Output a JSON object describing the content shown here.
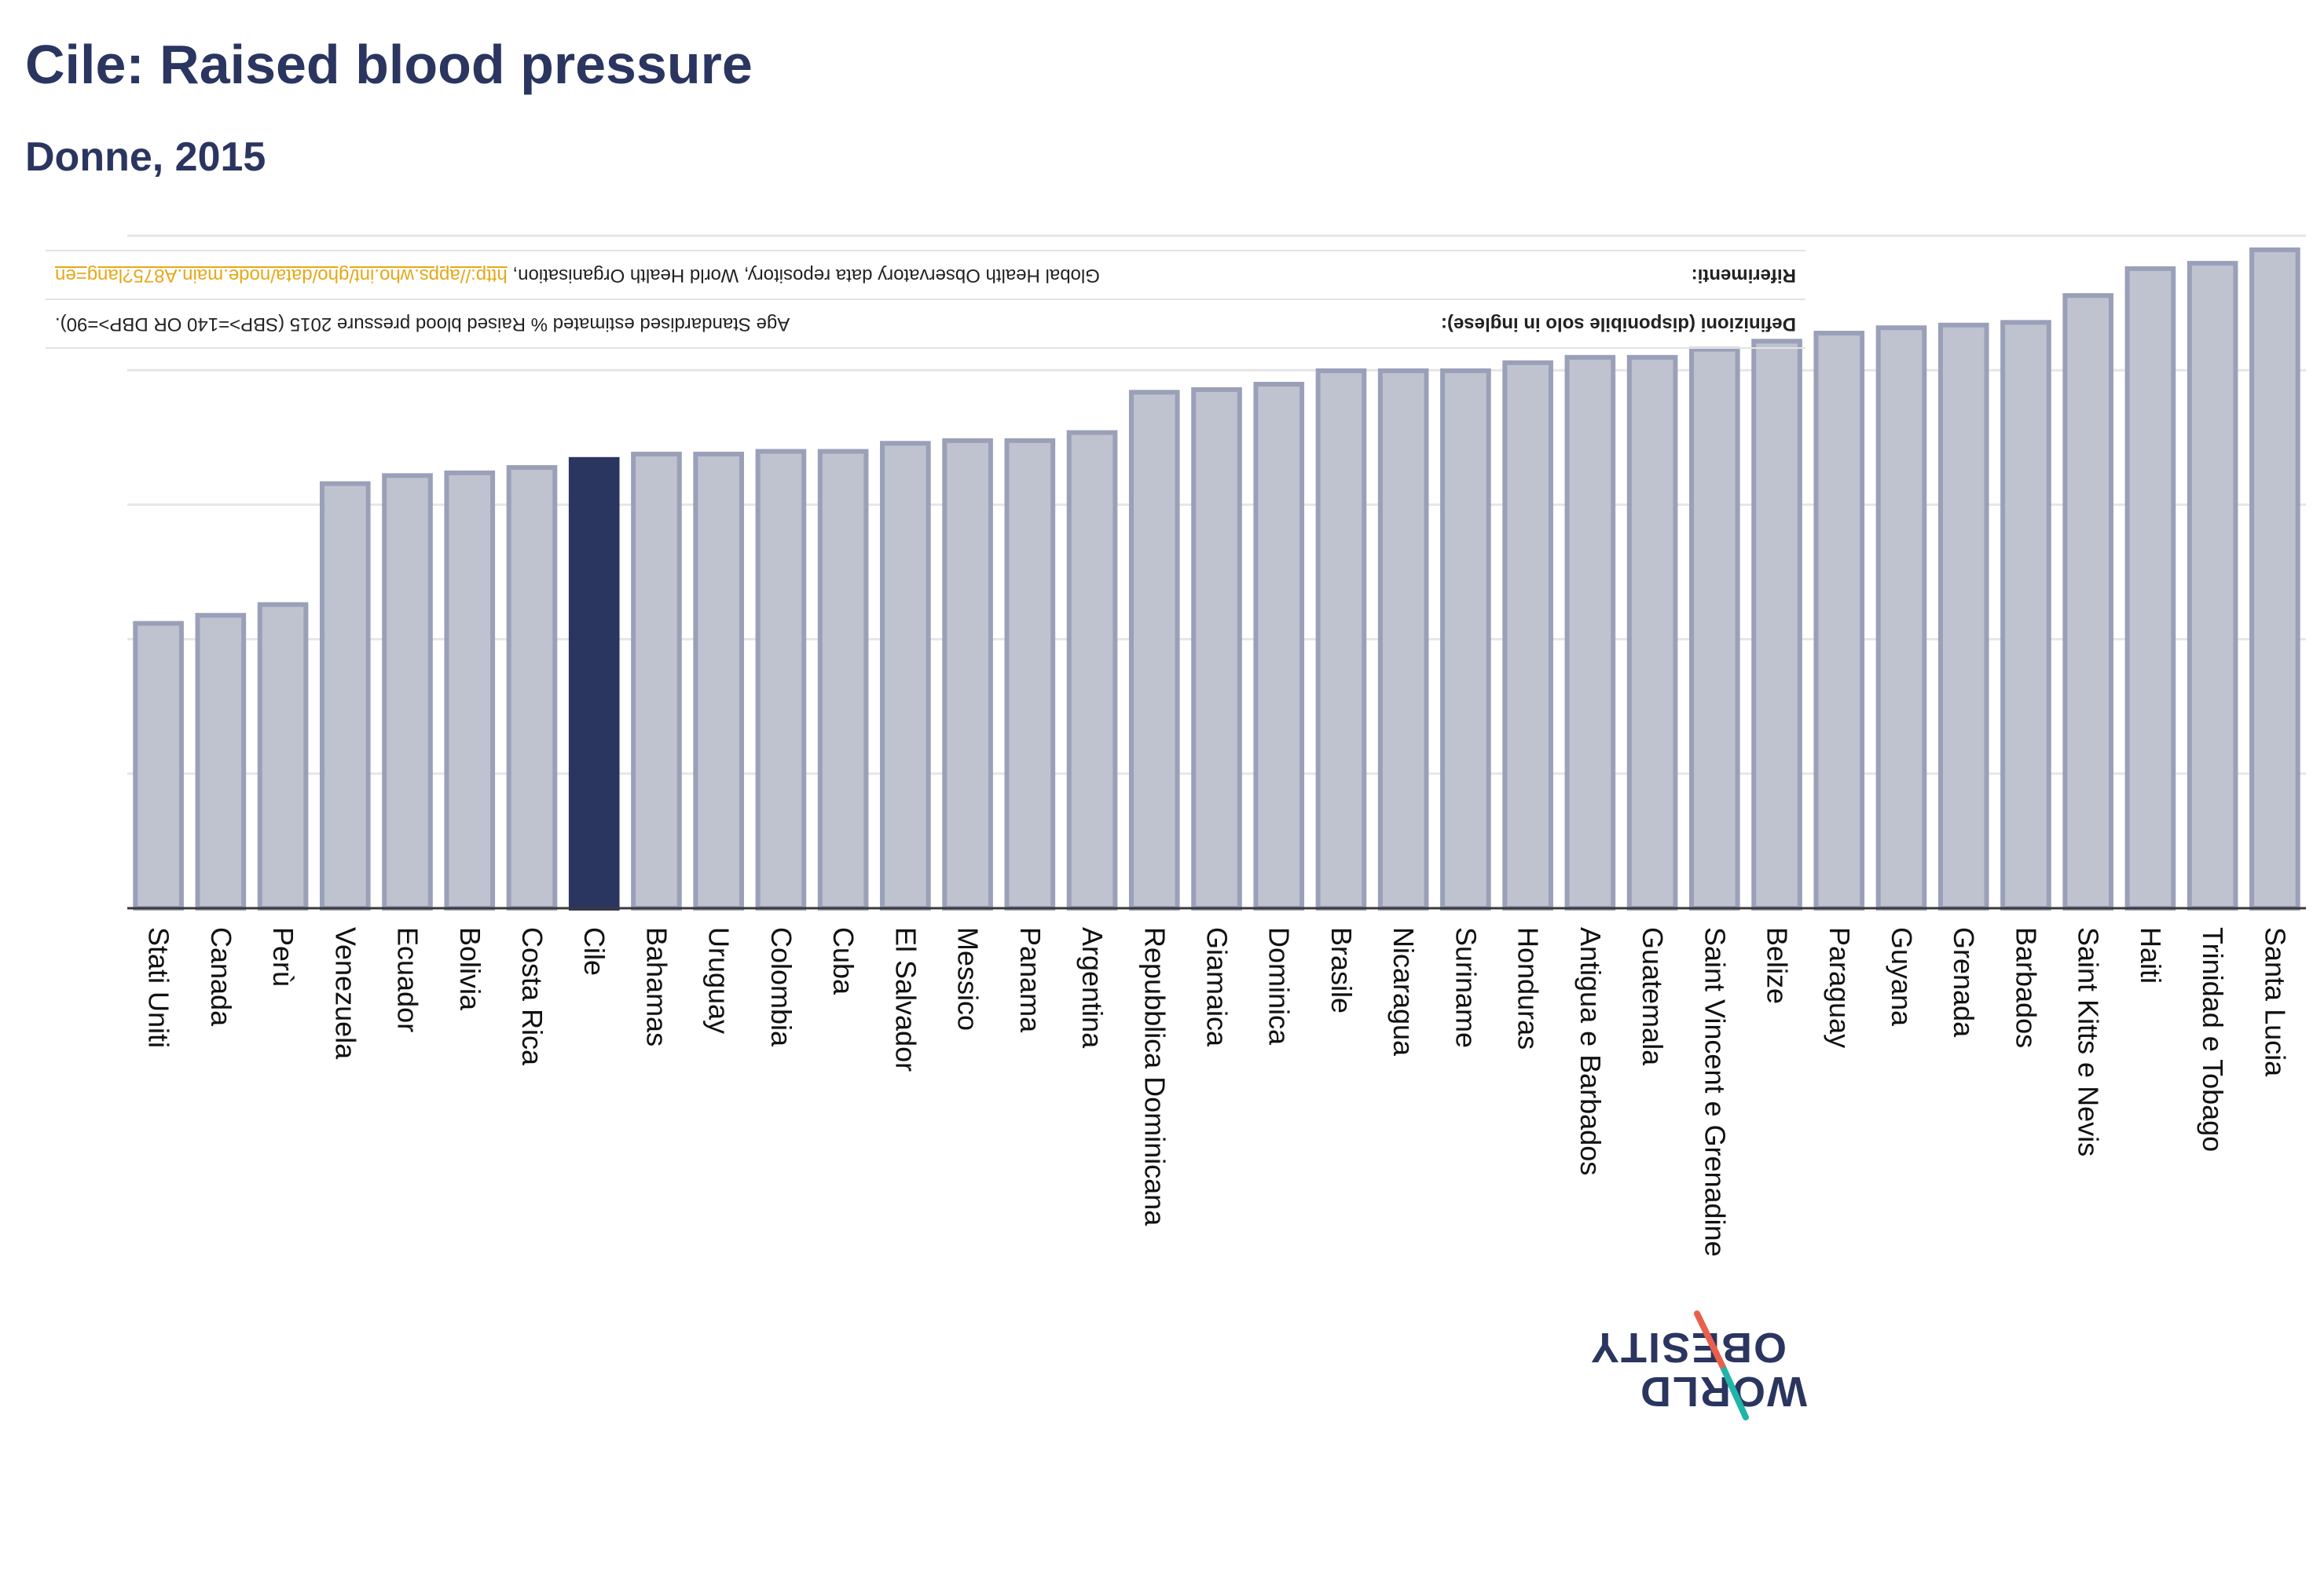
{
  "title": "Cile: Raised blood pressure",
  "subtitle": "Donne, 2015",
  "definitions": {
    "label": "Definizioni (disponibile solo in inglese):",
    "text": "Age Standardised estimated % Raised blood pressure 2015 (SBP>=140 OR DBP>=90)."
  },
  "references": {
    "label": "Riferimenti:",
    "text": "Global Health Observatory data repository, World Health Organisation,",
    "link": "http://apps.who.int/gho/data/node.main.A875?lang=en"
  },
  "logo": {
    "line1": "WORLD",
    "line2": "OBESITY"
  },
  "colors": {
    "bar": "#bfc3d0",
    "bar_stroke": "#9aa0b8",
    "highlight": "#2a3560",
    "title": "#2a3560",
    "link": "#e6a817"
  },
  "chart_data": {
    "type": "bar",
    "title": "Cile: Raised blood pressure",
    "subtitle": "Donne, 2015",
    "highlight": "Cile",
    "ylim": [
      0,
      24.5
    ],
    "grid": true,
    "categories": [
      "Stati Uniti",
      "Canada",
      "Perù",
      "Venezuela",
      "Ecuador",
      "Bolivia",
      "Costa Rica",
      "Cile",
      "Bahamas",
      "Uruguay",
      "Colombia",
      "Cuba",
      "El Salvador",
      "Messico",
      "Panama",
      "Argentina",
      "Repubblica Dominicana",
      "Giamaica",
      "Dominica",
      "Brasile",
      "Nicaragua",
      "Suriname",
      "Honduras",
      "Antigua e Barbados",
      "Guatemala",
      "Saint Vincent e Grenadine",
      "Belize",
      "Paraguay",
      "Guyana",
      "Grenada",
      "Barbados",
      "Saint Kitts e Nevis",
      "Haiti",
      "Trinidad e Tobago",
      "Santa Lucia"
    ],
    "values": [
      10.6,
      10.9,
      11.3,
      15.8,
      16.1,
      16.2,
      16.4,
      16.7,
      16.9,
      16.9,
      17.0,
      17.0,
      17.3,
      17.4,
      17.4,
      17.7,
      19.2,
      19.3,
      19.5,
      20.0,
      20.0,
      20.0,
      20.3,
      20.5,
      20.5,
      20.8,
      21.1,
      21.4,
      21.6,
      21.7,
      21.8,
      22.8,
      23.8,
      24.0,
      24.5
    ]
  }
}
